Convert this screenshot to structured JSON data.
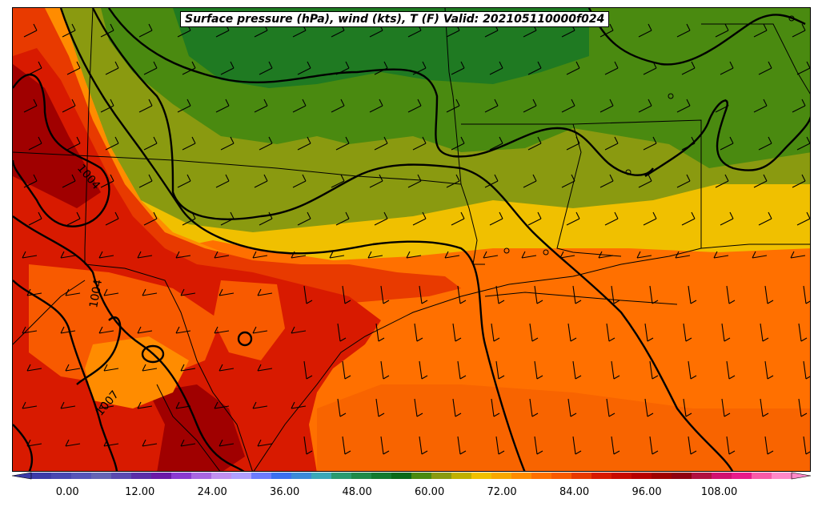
{
  "title": "Surface pressure (hPa), wind (kts), T (F) Valid: 202105110000f024",
  "isobar_labels": [
    {
      "text": "1004"
    },
    {
      "text": "1004"
    },
    {
      "text": "1007"
    }
  ],
  "colorbar": {
    "min": -6,
    "max": 120,
    "step": 3,
    "ticks": [
      "0.00",
      "12.00",
      "24.00",
      "36.00",
      "48.00",
      "60.00",
      "72.00",
      "84.00",
      "96.00",
      "108.00"
    ],
    "colors": [
      "#3b3ba8",
      "#4747b0",
      "#5555b8",
      "#6464b4",
      "#5a4ab0",
      "#5a2ea8",
      "#6a1aa8",
      "#8a3ad0",
      "#a866e0",
      "#c090f0",
      "#b0a0ff",
      "#6c7cff",
      "#3a70f0",
      "#3a8ad8",
      "#3aa8b8",
      "#2a9a70",
      "#1f8a4a",
      "#137a30",
      "#0a6a1a",
      "#4a8a10",
      "#8a9a10",
      "#c0b000",
      "#f0c000",
      "#f8a800",
      "#ff8c00",
      "#ff7000",
      "#f85a00",
      "#e83a00",
      "#d81a00",
      "#c80a00",
      "#b80000",
      "#a00000",
      "#900010",
      "#b01040",
      "#d01070",
      "#e81a8a",
      "#f85aa8",
      "#ff88c8"
    ]
  },
  "colors": {
    "cold_green": "#0a6a1a",
    "green": "#4a8a10",
    "olive": "#8a9a10",
    "yellow": "#f0c000",
    "orange": "#ff7000",
    "dark_orange": "#f85a00",
    "red": "#d81a00",
    "dark_red": "#a00000",
    "contour": "#000000"
  }
}
